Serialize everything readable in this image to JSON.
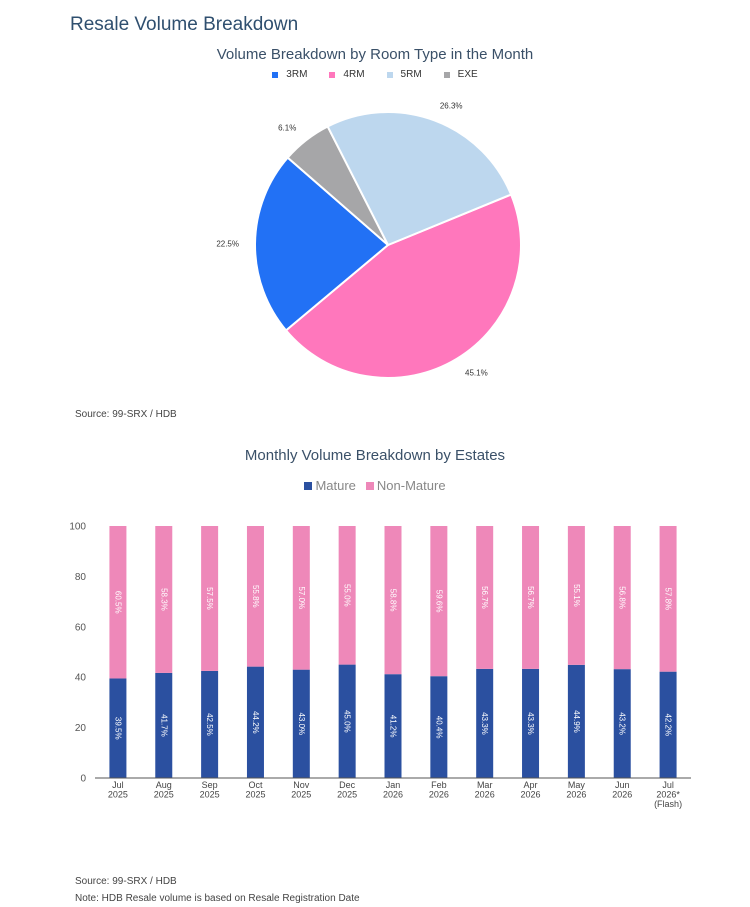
{
  "page_title": "Resale Volume Breakdown",
  "sources": {
    "pie": "Source: 99-SRX / HDB",
    "bar": "Source: 99-SRX / HDB",
    "note": "Note: HDB Resale volume is based on Resale Registration Date"
  },
  "chart_data": [
    {
      "type": "pie",
      "title": "Volume Breakdown by Room Type in the Month",
      "legend_position": "top",
      "slices": [
        {
          "label": "3RM",
          "value": 22.5,
          "display": "22.5%",
          "color": "#2271f5"
        },
        {
          "label": "4RM",
          "value": 45.1,
          "display": "45.1%",
          "color": "#ff77bc"
        },
        {
          "label": "5RM",
          "value": 26.3,
          "display": "26.3%",
          "color": "#bdd7ee"
        },
        {
          "label": "EXE",
          "value": 6.1,
          "display": "6.1%",
          "color": "#a6a6a8"
        }
      ]
    },
    {
      "type": "bar",
      "stacked": true,
      "title": "Monthly Volume Breakdown by Estates",
      "legend_position": "top",
      "ylim": [
        0,
        100
      ],
      "yticks": [
        "0",
        "20",
        "40",
        "60",
        "80",
        "100"
      ],
      "grid": false,
      "categories": [
        [
          "Jul",
          "2025"
        ],
        [
          "Aug",
          "2025"
        ],
        [
          "Sep",
          "2025"
        ],
        [
          "Oct",
          "2025"
        ],
        [
          "Nov",
          "2025"
        ],
        [
          "Dec",
          "2025"
        ],
        [
          "Jan",
          "2026"
        ],
        [
          "Feb",
          "2026"
        ],
        [
          "Mar",
          "2026"
        ],
        [
          "Apr",
          "2026"
        ],
        [
          "May",
          "2026"
        ],
        [
          "Jun",
          "2026"
        ],
        [
          "Jul",
          "2026*",
          "(Flash)"
        ]
      ],
      "series": [
        {
          "name": "Mature",
          "color": "#2b50a0",
          "values": [
            39.5,
            41.7,
            42.5,
            44.2,
            43.0,
            45.0,
            41.2,
            40.4,
            43.3,
            43.3,
            44.9,
            43.2,
            42.2
          ],
          "labels": [
            "39.5%",
            "41.7%",
            "42.5%",
            "44.2%",
            "43.0%",
            "45.0%",
            "41.2%",
            "40.4%",
            "43.3%",
            "43.3%",
            "44.9%",
            "43.2%",
            "42.2%"
          ]
        },
        {
          "name": "Non-Mature",
          "color": "#ee88b9",
          "values": [
            60.5,
            58.3,
            57.5,
            55.8,
            57.0,
            55.0,
            58.8,
            59.6,
            56.7,
            56.7,
            55.1,
            56.8,
            57.8
          ],
          "labels": [
            "60.5%",
            "58.3%",
            "57.5%",
            "55.8%",
            "57.0%",
            "55.0%",
            "58.8%",
            "59.6%",
            "56.7%",
            "56.7%",
            "55.1%",
            "56.8%",
            "57.8%"
          ]
        }
      ]
    }
  ]
}
